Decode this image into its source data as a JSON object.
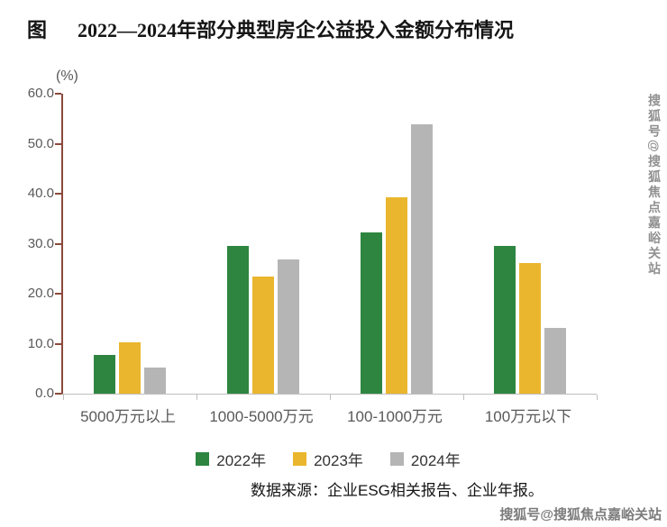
{
  "figure": {
    "label": "图",
    "title": "2022—2024年部分典型房企公益投入金额分布情况"
  },
  "chart_data": {
    "type": "bar",
    "title": "2022—2024年部分典型房企公益投入金额分布情况",
    "categories": [
      "5000万元以上",
      "1000-5000万元",
      "100-1000万元",
      "100万元以下"
    ],
    "series": [
      {
        "name": "2022年",
        "color": "#2e8540",
        "values": [
          7.8,
          29.5,
          32.3,
          29.5
        ]
      },
      {
        "name": "2023年",
        "color": "#eab62d",
        "values": [
          10.2,
          23.5,
          39.3,
          26.2
        ]
      },
      {
        "name": "2024年",
        "color": "#b5b5b5",
        "values": [
          5.3,
          26.8,
          53.9,
          13.2
        ]
      }
    ],
    "xlabel": "",
    "ylabel": "(%)",
    "ylim": [
      0,
      60
    ],
    "ytick_labels": [
      "60.0",
      "50.0",
      "40.0",
      "30.0",
      "20.0",
      "10.0",
      "0.0"
    ],
    "grid": false,
    "legend_position": "bottom"
  },
  "source_note": "数据来源：企业ESG相关报告、企业年报。",
  "watermarks": {
    "right_vertical": "搜狐号@搜狐焦点嘉峪关站",
    "bottom_right": "搜狐号@搜狐焦点嘉峪关站"
  },
  "colors": {
    "series_2022_green": "#2e8540",
    "series_2023_yellow": "#eab62d",
    "series_2024_gray": "#b5b5b5",
    "y_axis": "#8a4a3c",
    "x_axis": "#bfbfbf",
    "tick_text": "#595959"
  }
}
